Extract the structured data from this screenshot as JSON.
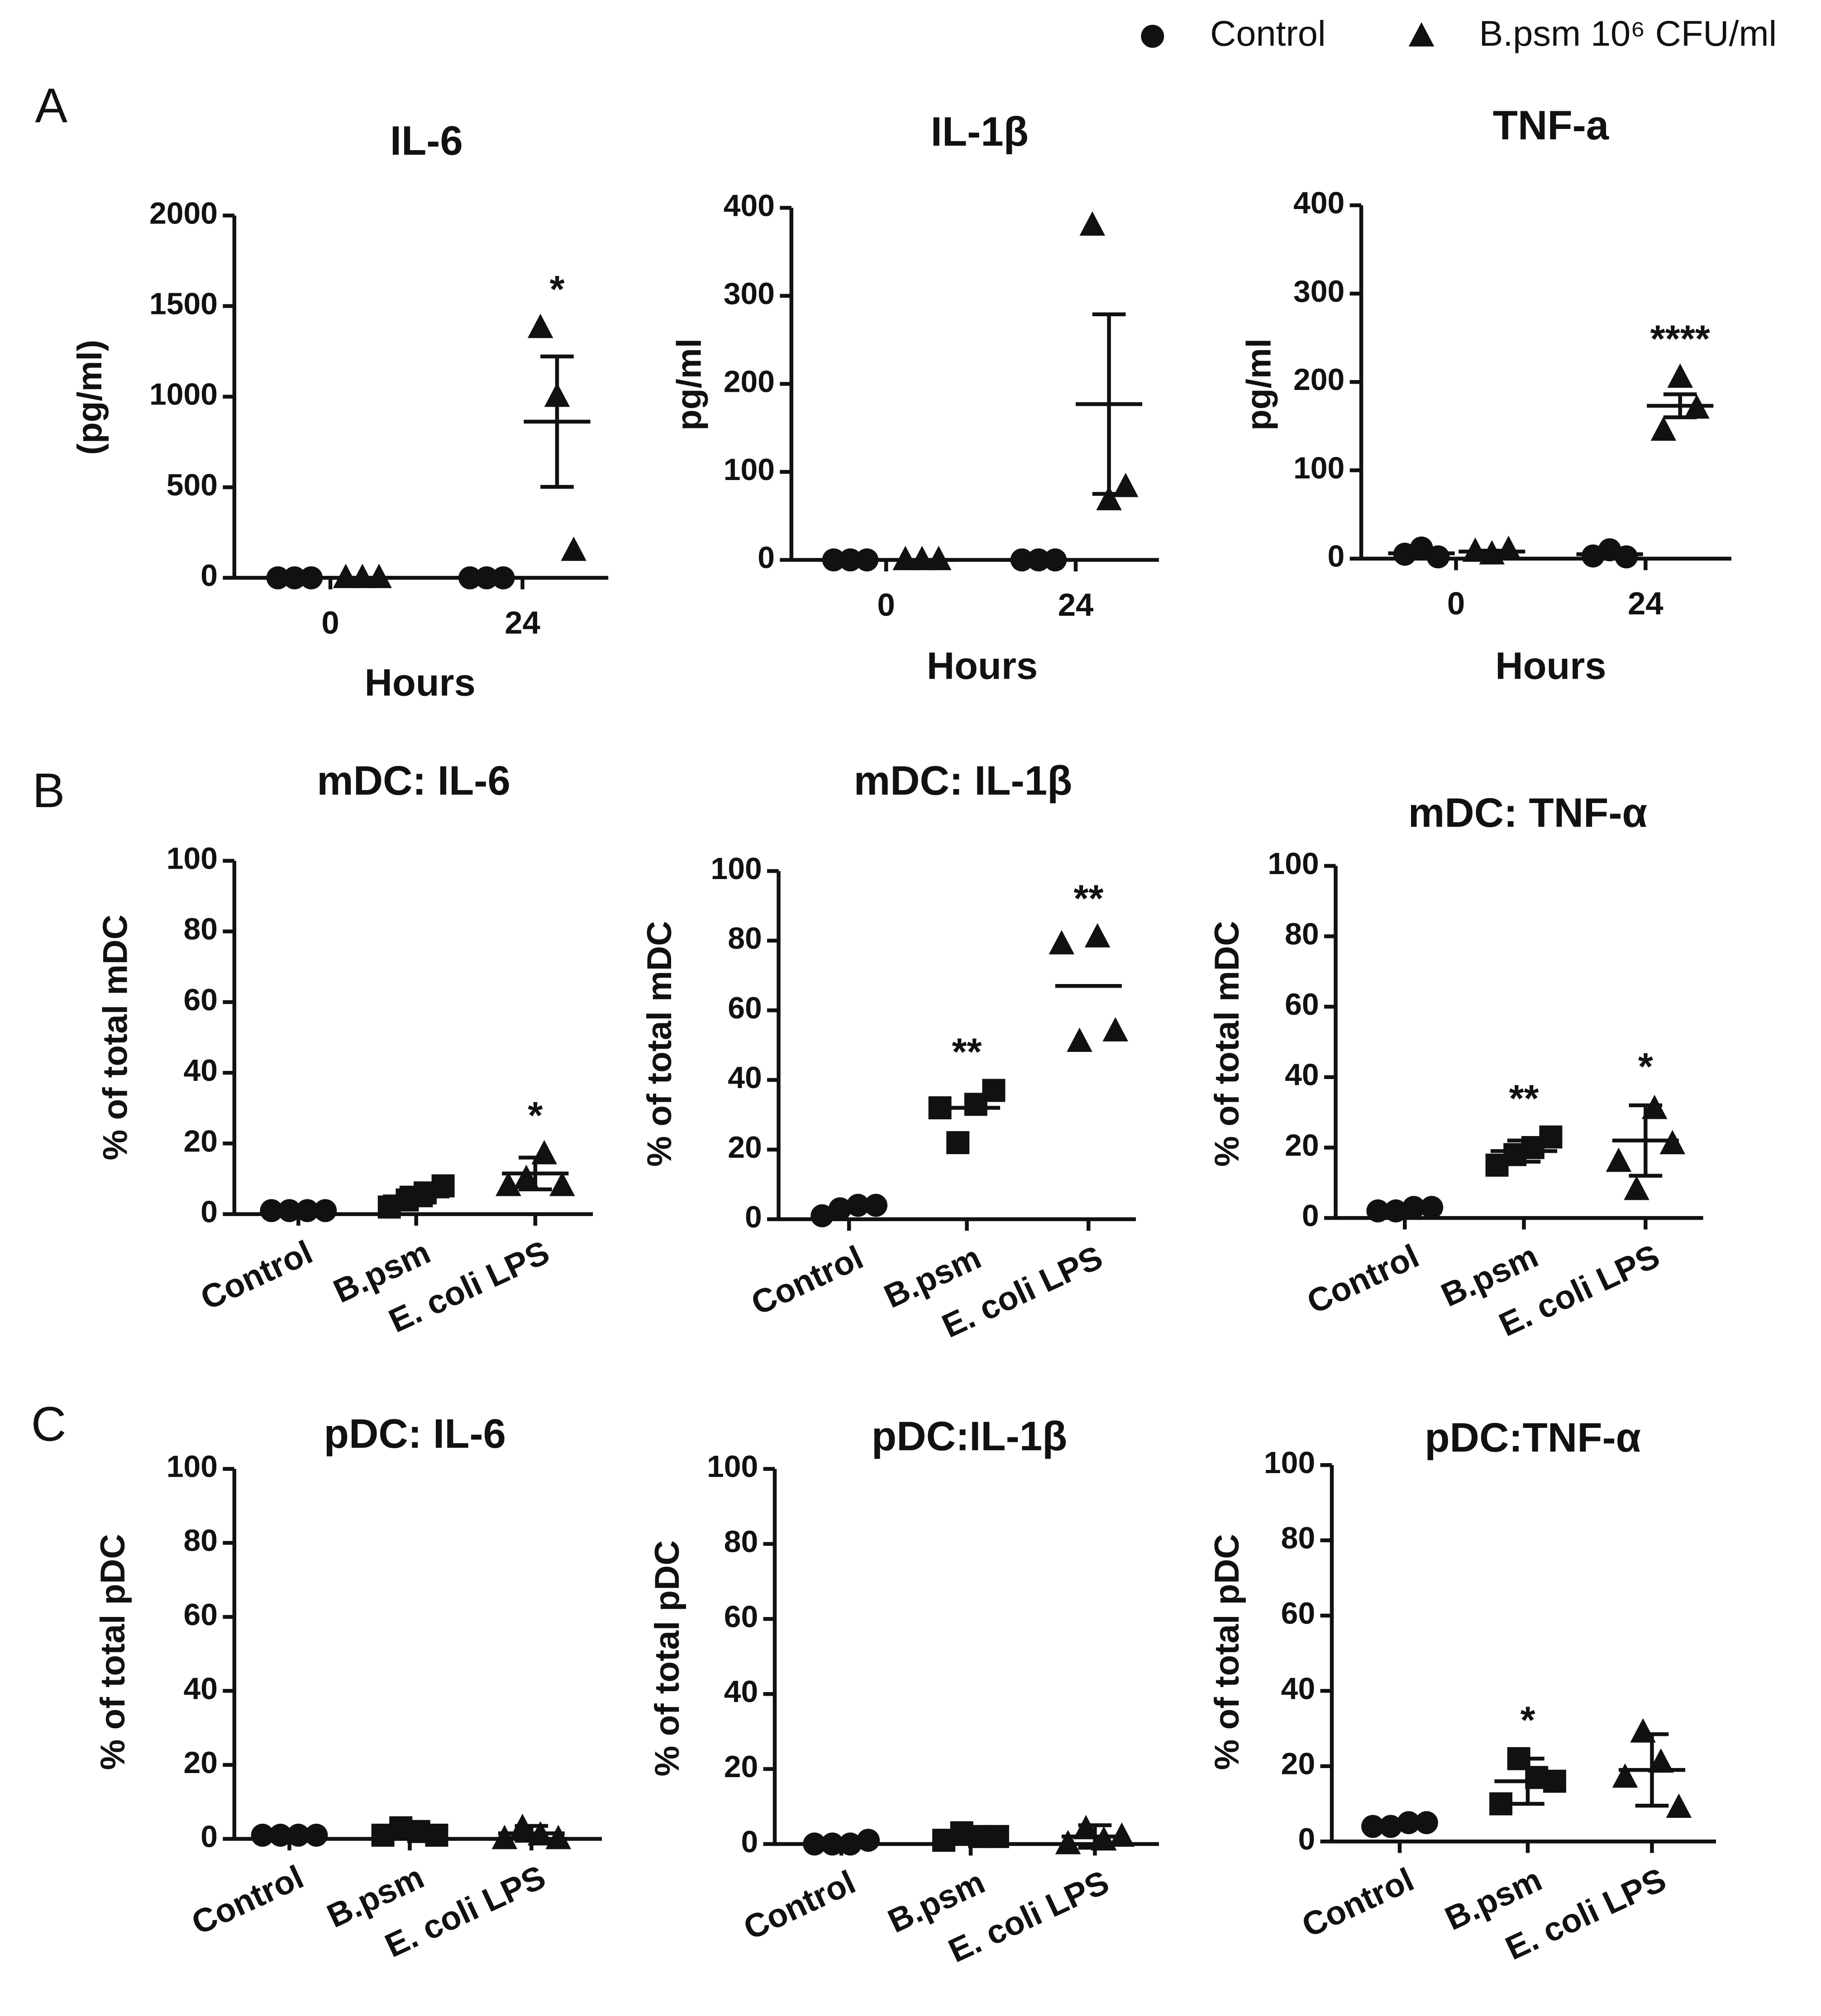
{
  "panel_labels": [
    "A",
    "B",
    "C"
  ],
  "legend": [
    {
      "name": "Control",
      "marker": "circle"
    },
    {
      "name": "B.psm 10⁶ CFU/ml",
      "marker": "triangle"
    }
  ],
  "chart_data": [
    {
      "type": "grouped_dotplot",
      "title": "IL-6",
      "ylabel": "(pg/ml)",
      "xlabel": "Hours",
      "categories": [
        "0",
        "24"
      ],
      "ylim": [
        0,
        2000
      ],
      "yticks": [
        0,
        500,
        1000,
        1500,
        2000
      ],
      "series": [
        {
          "marker": "circle",
          "points": [
            [
              0,
              0,
              0
            ],
            [
              0,
              0,
              0
            ]
          ],
          "mean": [
            0,
            0
          ],
          "error": [
            0,
            0
          ]
        },
        {
          "marker": "triangle",
          "points": [
            [
              0,
              0,
              0
            ],
            [
              1380,
              1000,
              150
            ]
          ],
          "mean": [
            0,
            862
          ],
          "error": [
            0,
            360
          ],
          "stars": [
            null,
            "*"
          ]
        }
      ]
    },
    {
      "type": "grouped_dotplot",
      "title": "IL-1β",
      "ylabel": "pg/ml",
      "xlabel": "Hours",
      "categories": [
        "0",
        "24"
      ],
      "ylim": [
        0,
        400
      ],
      "yticks": [
        0,
        100,
        200,
        300,
        400
      ],
      "series": [
        {
          "marker": "circle",
          "points": [
            [
              0,
              0,
              0
            ],
            [
              0,
              0,
              0
            ]
          ],
          "mean": [
            0,
            0
          ],
          "error": [
            0,
            0
          ]
        },
        {
          "marker": "triangle",
          "points": [
            [
              0,
              0,
              0
            ],
            [
              380,
              68,
              83
            ]
          ],
          "mean": [
            0,
            177
          ],
          "error": [
            0,
            102
          ]
        }
      ]
    },
    {
      "type": "grouped_dotplot",
      "title": "TNF-a",
      "ylabel": "pg/ml",
      "xlabel": "Hours",
      "categories": [
        "0",
        "24"
      ],
      "ylim": [
        0,
        400
      ],
      "yticks": [
        0,
        100,
        200,
        300,
        400
      ],
      "series": [
        {
          "marker": "circle",
          "points": [
            [
              5,
              12,
              2
            ],
            [
              3,
              10,
              2
            ]
          ],
          "mean": [
            6,
            5
          ],
          "error": [
            3,
            3
          ]
        },
        {
          "marker": "triangle",
          "points": [
            [
              8,
              5,
              10
            ],
            [
              145,
              205,
              170
            ]
          ],
          "mean": [
            8,
            173
          ],
          "error": [
            1,
            13
          ],
          "stars": [
            null,
            "****"
          ]
        }
      ]
    },
    {
      "type": "dotplot",
      "title": "mDC: IL-6",
      "ylabel": "% of total mDC",
      "categories": [
        "Control",
        "B.psm",
        "E. coli LPS"
      ],
      "ylim": [
        0,
        100
      ],
      "yticks": [
        0,
        20,
        40,
        60,
        80,
        100
      ],
      "groups": [
        {
          "marker": "circle",
          "points": [
            1,
            1,
            1,
            1
          ],
          "mean": 1
        },
        {
          "marker": "square",
          "points": [
            2,
            4,
            6,
            8
          ],
          "mean": 5,
          "error": 2.5
        },
        {
          "marker": "triangle",
          "points": [
            8,
            10,
            17,
            8
          ],
          "mean": 11.5,
          "error": 4.5,
          "star": "*"
        }
      ]
    },
    {
      "type": "dotplot",
      "title": "mDC: IL-1β",
      "ylabel": "% of total mDC",
      "categories": [
        "Control",
        "B.psm",
        "E. coli LPS"
      ],
      "ylim": [
        0,
        100
      ],
      "yticks": [
        0,
        20,
        40,
        60,
        80,
        100
      ],
      "groups": [
        {
          "marker": "circle",
          "points": [
            1,
            3,
            4,
            4
          ],
          "mean": 3
        },
        {
          "marker": "square",
          "points": [
            32,
            22,
            33,
            37
          ],
          "mean": 32,
          "star": "**"
        },
        {
          "marker": "triangle",
          "points": [
            79,
            51,
            81,
            54
          ],
          "mean": 67,
          "star": "**"
        }
      ]
    },
    {
      "type": "dotplot",
      "title": "mDC: TNF-α",
      "ylabel": "% of total mDC",
      "categories": [
        "Control",
        "B.psm",
        "E. coli LPS"
      ],
      "ylim": [
        0,
        100
      ],
      "yticks": [
        0,
        20,
        40,
        60,
        80,
        100
      ],
      "groups": [
        {
          "marker": "circle",
          "points": [
            2,
            2,
            3,
            3
          ],
          "mean": 2.5
        },
        {
          "marker": "square",
          "points": [
            15,
            18,
            20,
            23
          ],
          "mean": 19,
          "error": 3,
          "star": "**"
        },
        {
          "marker": "triangle",
          "points": [
            16,
            8,
            31,
            21
          ],
          "mean": 22,
          "error": 10,
          "star": "*"
        }
      ]
    },
    {
      "type": "dotplot",
      "title": "pDC: IL-6",
      "ylabel": "% of total pDC",
      "categories": [
        "Control",
        "B.psm",
        "E. coli LPS"
      ],
      "ylim": [
        0,
        100
      ],
      "yticks": [
        0,
        20,
        40,
        60,
        80,
        100
      ],
      "groups": [
        {
          "marker": "circle",
          "points": [
            1,
            1,
            1,
            1
          ],
          "mean": 1
        },
        {
          "marker": "square",
          "points": [
            1,
            3,
            2,
            1
          ],
          "mean": 2,
          "error": 1
        },
        {
          "marker": "triangle",
          "points": [
            0,
            3,
            1,
            0
          ],
          "mean": 1.5,
          "error": 2
        }
      ]
    },
    {
      "type": "dotplot",
      "title": "pDC:IL-1β",
      "ylabel": "% of total pDC",
      "categories": [
        "Control",
        "B.psm",
        "E. coli LPS"
      ],
      "ylim": [
        0,
        100
      ],
      "yticks": [
        0,
        20,
        40,
        60,
        80,
        100
      ],
      "groups": [
        {
          "marker": "circle",
          "points": [
            0,
            0,
            0,
            1
          ],
          "mean": 0.5
        },
        {
          "marker": "square",
          "points": [
            1,
            3,
            2,
            2
          ],
          "mean": 2,
          "error": 1
        },
        {
          "marker": "triangle",
          "points": [
            0,
            4,
            1,
            2
          ],
          "mean": 2,
          "error": 3
        }
      ]
    },
    {
      "type": "dotplot",
      "title": "pDC:TNF-α",
      "ylabel": "% of total pDC",
      "categories": [
        "Control",
        "B.psm",
        "E. coli LPS"
      ],
      "ylim": [
        0,
        100
      ],
      "yticks": [
        0,
        20,
        40,
        60,
        80,
        100
      ],
      "groups": [
        {
          "marker": "circle",
          "points": [
            4,
            4,
            5,
            5
          ],
          "mean": 4.5
        },
        {
          "marker": "square",
          "points": [
            10,
            22,
            17,
            16
          ],
          "mean": 16,
          "error": 6,
          "star": "*"
        },
        {
          "marker": "triangle",
          "points": [
            17,
            29,
            21,
            9
          ],
          "mean": 19,
          "error": 9.5
        }
      ]
    }
  ]
}
